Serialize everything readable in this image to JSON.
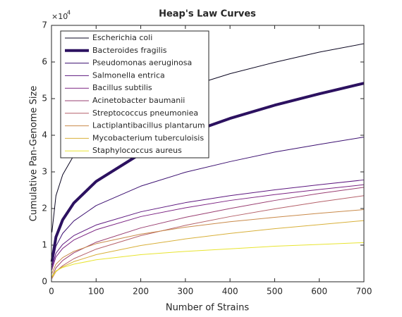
{
  "chart_data": {
    "type": "line",
    "title": "Heap's Law Curves",
    "xlabel": "Number of Strains",
    "ylabel": "Cumulative Pan-Genome Size",
    "y_multiplier": {
      "base": "×10",
      "exponent": "4"
    },
    "x": [
      1,
      10,
      25,
      50,
      100,
      200,
      300,
      400,
      500,
      600,
      700
    ],
    "series": [
      {
        "name": "Escherichia coli",
        "color": "#0a0520",
        "width": 1,
        "values": [
          1.35,
          2.35,
          2.92,
          3.45,
          4.08,
          4.81,
          5.3,
          5.68,
          5.99,
          6.27,
          6.5
        ]
      },
      {
        "name": "Bacteroides fragilis",
        "color": "#2c1160",
        "width": 4,
        "values": [
          0.55,
          1.22,
          1.69,
          2.15,
          2.74,
          3.5,
          4.03,
          4.46,
          4.82,
          5.13,
          5.42
        ]
      },
      {
        "name": "Pseudomonas aeruginosa",
        "color": "#3b0f70",
        "width": 1,
        "values": [
          0.45,
          0.97,
          1.32,
          1.66,
          2.08,
          2.61,
          2.99,
          3.28,
          3.54,
          3.75,
          3.95
        ]
      },
      {
        "name": "Salmonella entrica",
        "color": "#5d177f",
        "width": 1,
        "values": [
          0.39,
          0.78,
          1.02,
          1.26,
          1.55,
          1.91,
          2.16,
          2.35,
          2.51,
          2.65,
          2.78
        ]
      },
      {
        "name": "Bacillus subtilis",
        "color": "#7b2382",
        "width": 1,
        "values": [
          0.33,
          0.68,
          0.91,
          1.14,
          1.42,
          1.78,
          2.02,
          2.22,
          2.38,
          2.52,
          2.65
        ]
      },
      {
        "name": "Acinetobacter baumanii",
        "color": "#9a3f72",
        "width": 1,
        "values": [
          0.13,
          0.38,
          0.58,
          0.79,
          1.08,
          1.47,
          1.76,
          2.0,
          2.22,
          2.41,
          2.58
        ]
      },
      {
        "name": "Streptococcus pneumoniea",
        "color": "#b5616a",
        "width": 1,
        "values": [
          0.09,
          0.28,
          0.44,
          0.63,
          0.89,
          1.26,
          1.54,
          1.78,
          1.99,
          2.18,
          2.35
        ]
      },
      {
        "name": "Lactiplantibacillus plantarum",
        "color": "#c98a4a",
        "width": 1,
        "values": [
          0.23,
          0.48,
          0.66,
          0.83,
          1.04,
          1.3,
          1.49,
          1.64,
          1.76,
          1.87,
          1.97
        ]
      },
      {
        "name": "Mycobacterium tuberculoisis",
        "color": "#d8b03a",
        "width": 1,
        "values": [
          0.11,
          0.28,
          0.41,
          0.55,
          0.74,
          0.99,
          1.17,
          1.32,
          1.45,
          1.56,
          1.67
        ]
      },
      {
        "name": "Staphylococcus aureus",
        "color": "#e8e430",
        "width": 1,
        "values": [
          0.15,
          0.3,
          0.39,
          0.48,
          0.6,
          0.74,
          0.83,
          0.9,
          0.97,
          1.02,
          1.07
        ]
      }
    ],
    "xlim": [
      0,
      700
    ],
    "xticks": [
      0,
      100,
      200,
      300,
      400,
      500,
      600,
      700
    ],
    "ylim": [
      0,
      7
    ],
    "yticks": [
      0,
      1,
      2,
      3,
      4,
      5,
      6,
      7
    ],
    "legend": "upper-left"
  }
}
